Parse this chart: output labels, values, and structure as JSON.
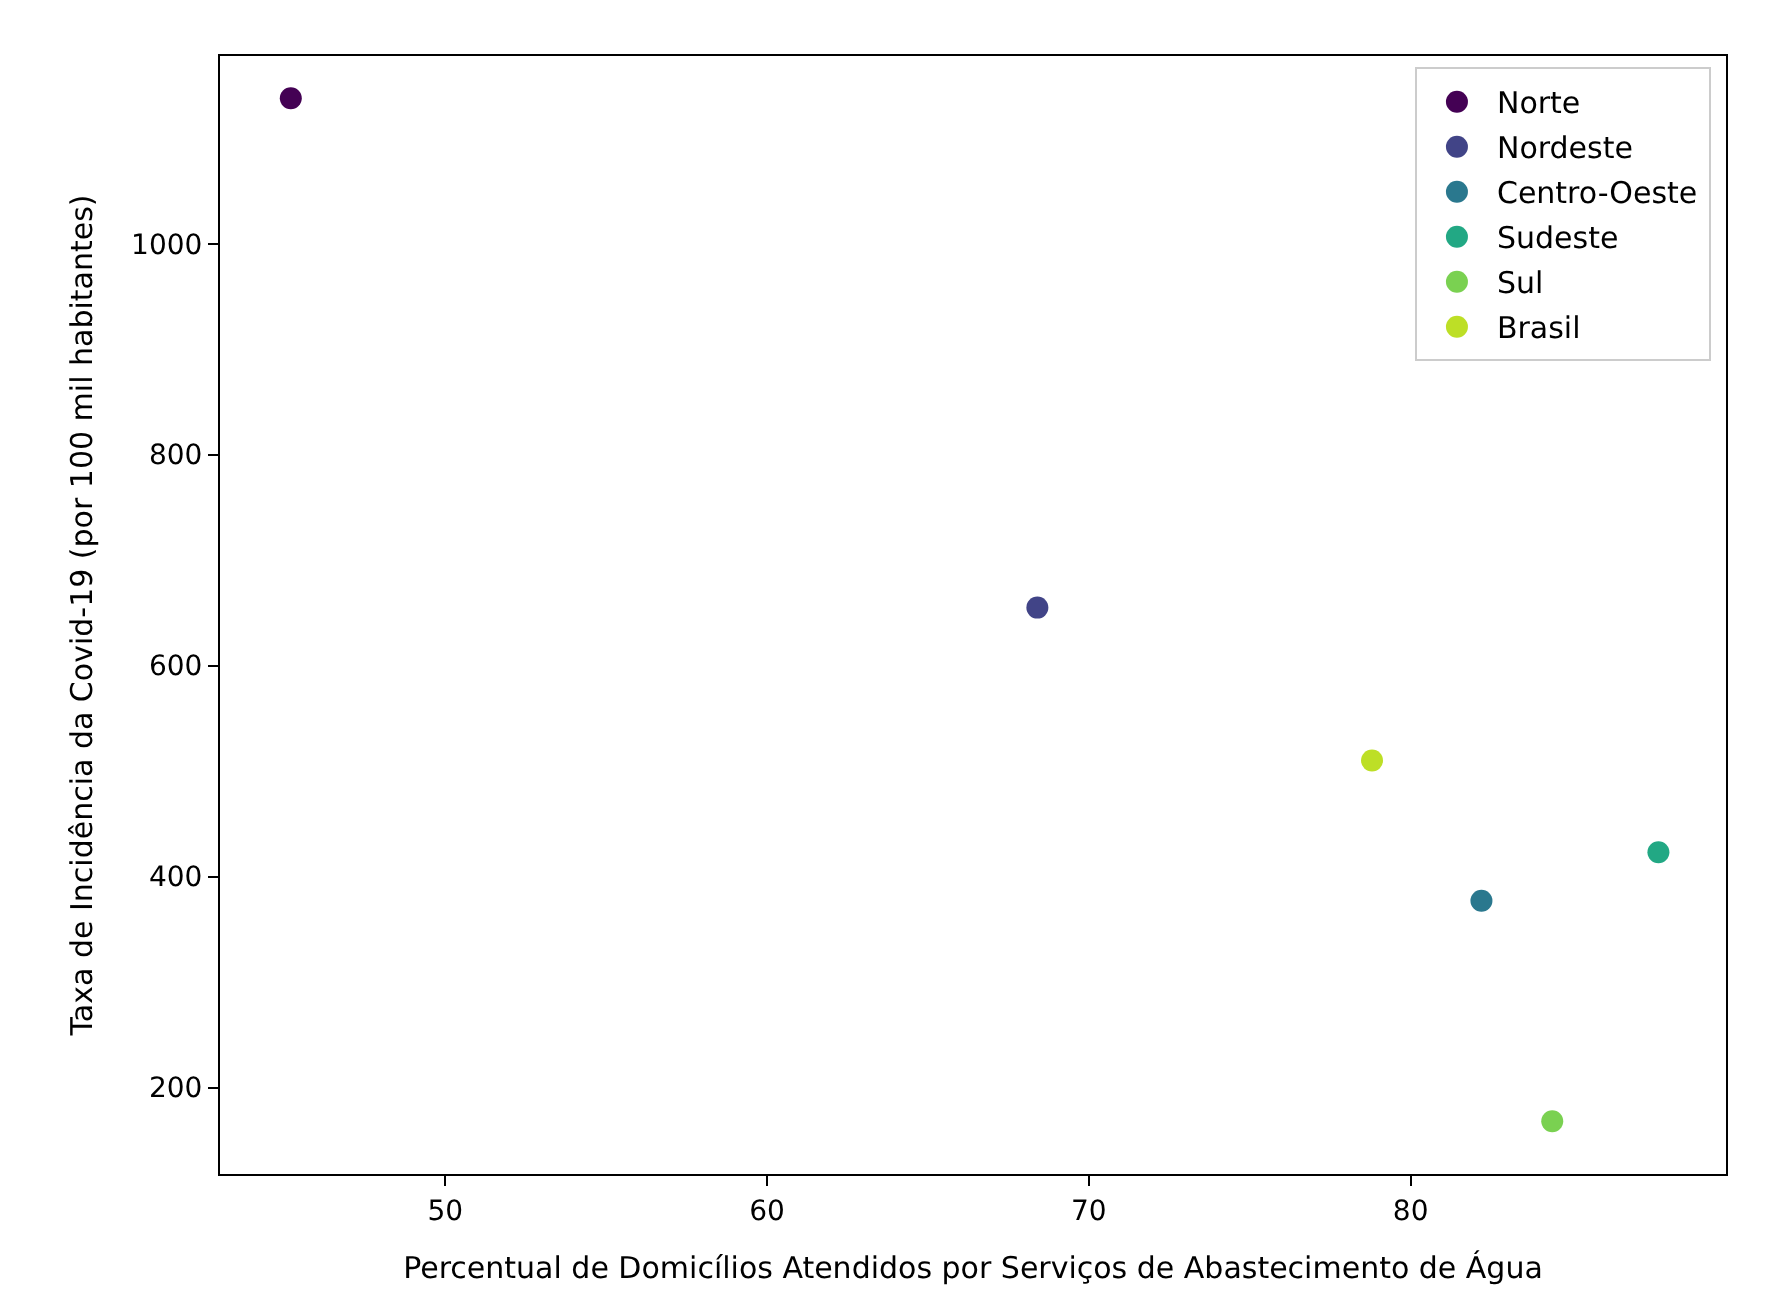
{
  "chart_data": {
    "type": "scatter",
    "xlabel": "Percentual de Domicílios Atendidos por Serviços de Abastecimento de Água",
    "ylabel": "Taxa de Incidência da Covid-19 (por 100 mil habitantes)",
    "xlim": [
      43.0,
      89.8
    ],
    "xticks": [
      50,
      60,
      70,
      80
    ],
    "ylim": [
      118,
      1178
    ],
    "yticks": [
      200,
      400,
      600,
      800,
      1000
    ],
    "legend": "top right",
    "marker": "circle",
    "series": [
      {
        "name": "Norte",
        "color": "#440154",
        "x": [
          45.2
        ],
        "values": [
          1138
        ]
      },
      {
        "name": "Nordeste",
        "color": "#414487",
        "x": [
          68.4
        ],
        "values": [
          655
        ]
      },
      {
        "name": "Centro-Oeste",
        "color": "#2a788e",
        "x": [
          82.2
        ],
        "values": [
          377
        ]
      },
      {
        "name": "Sudeste",
        "color": "#22a884",
        "x": [
          87.7
        ],
        "values": [
          423
        ]
      },
      {
        "name": "Sul",
        "color": "#7ad151",
        "x": [
          84.4
        ],
        "values": [
          168
        ]
      },
      {
        "name": "Brasil",
        "color": "#bddf26",
        "x": [
          78.8
        ],
        "values": [
          510
        ]
      }
    ]
  }
}
